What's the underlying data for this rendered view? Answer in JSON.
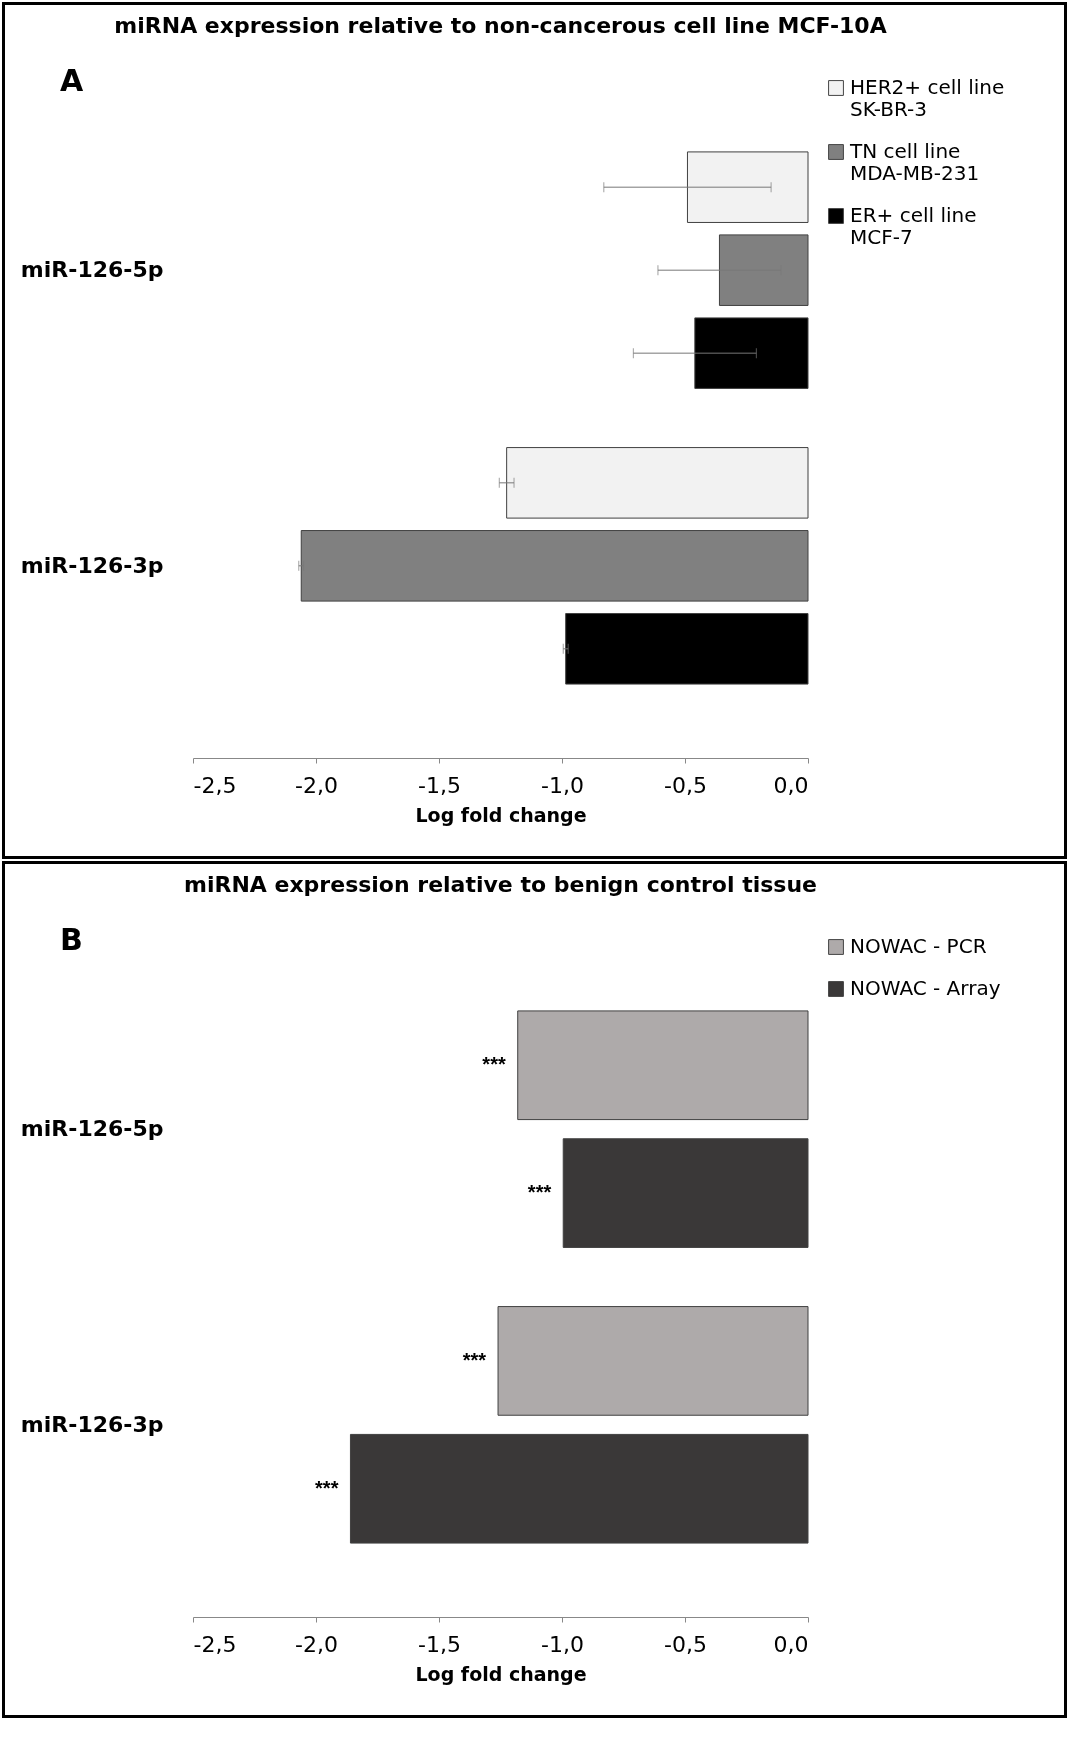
{
  "chart_data": [
    {
      "type": "bar",
      "orientation": "horizontal",
      "title": "miRNA expression relative to non-cancerous cell line MCF-10A",
      "xlabel": "Log fold change",
      "annotations": [
        "A"
      ],
      "categories": [
        "miR-126-5p",
        "miR-126-3p"
      ],
      "series": [
        {
          "name": "HER2+ cell line SK-BR-3",
          "color": "#f2f2f2",
          "values": [
            -0.49,
            -1.225
          ],
          "errors": [
            0.34,
            0.03
          ]
        },
        {
          "name": "TN cell line MDA-MB-231",
          "color": "#808080",
          "values": [
            -0.36,
            -2.06
          ],
          "errors": [
            0.25,
            0.01
          ]
        },
        {
          "name": "ER+ cell line MCF-7",
          "color": "#000000",
          "values": [
            -0.46,
            -0.985
          ],
          "errors": [
            0.25,
            0.01
          ]
        }
      ],
      "xlim": [
        -2.5,
        0
      ],
      "xticks": [
        {
          "value": -2.5,
          "label": "-2,5"
        },
        {
          "value": -2,
          "label": "-2,0"
        },
        {
          "value": -1.5,
          "label": "-1,5"
        },
        {
          "value": -1,
          "label": "-1,0"
        },
        {
          "value": -0.5,
          "label": "-0,5"
        },
        {
          "value": 0,
          "label": "0,0"
        }
      ],
      "legend": "right"
    },
    {
      "type": "bar",
      "orientation": "horizontal",
      "title": "miRNA expression relative to benign control tissue",
      "xlabel": "Log fold change",
      "annotations": [
        "B",
        "***",
        "***",
        "***",
        "***"
      ],
      "categories": [
        "miR-126-5p",
        "miR-126-3p"
      ],
      "series": [
        {
          "name": "NOWAC - PCR",
          "color": "#aeaaaa",
          "values": [
            -1.18,
            -1.26
          ]
        },
        {
          "name": "NOWAC - Array",
          "color": "#3a3838",
          "values": [
            -0.995,
            -1.86
          ]
        }
      ],
      "xlim": [
        -2.5,
        0
      ],
      "xticks": [
        {
          "value": -2.5,
          "label": "-2,5"
        },
        {
          "value": -2,
          "label": "-2,0"
        },
        {
          "value": -1.5,
          "label": "-1,5"
        },
        {
          "value": -1,
          "label": "-1,0"
        },
        {
          "value": -0.5,
          "label": "-0,5"
        },
        {
          "value": 0,
          "label": "0,0"
        }
      ],
      "legend": "right"
    }
  ]
}
